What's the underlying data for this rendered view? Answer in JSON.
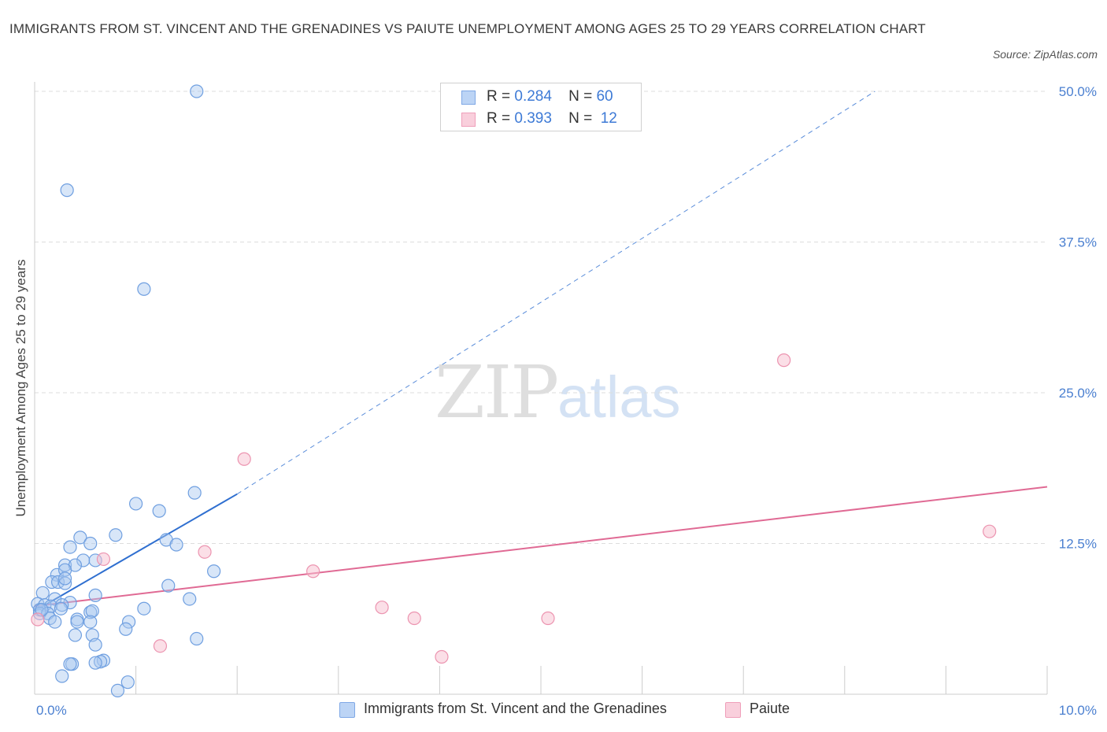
{
  "header": {
    "title": "IMMIGRANTS FROM ST. VINCENT AND THE GRENADINES VS PAIUTE UNEMPLOYMENT AMONG AGES 25 TO 29 YEARS CORRELATION CHART",
    "source": "Source: ZipAtlas.com"
  },
  "watermark": {
    "zip": "ZIP",
    "atlas": "atlas"
  },
  "legend_top": {
    "series1": {
      "r_label": "R =",
      "r_value": "0.284",
      "n_label": "N =",
      "n_value": "60"
    },
    "series2": {
      "r_label": "R =",
      "r_value": "0.393",
      "n_label": "N =",
      "n_value": "12"
    }
  },
  "legend_bottom": {
    "series1": "Immigrants from St. Vincent and the Grenadines",
    "series2": "Paiute"
  },
  "colors": {
    "blue_fill": "#a9c8f0",
    "blue_stroke": "#6f9fe0",
    "blue_line": "#2f6fd0",
    "pink_fill": "#f7bfd0",
    "pink_stroke": "#ec94b0",
    "pink_line": "#e06a94",
    "grid": "#dddddd",
    "axis_text": "#4a7fd0"
  },
  "chart_data": {
    "type": "scatter",
    "title": "IMMIGRANTS FROM ST. VINCENT AND THE GRENADINES VS PAIUTE UNEMPLOYMENT AMONG AGES 25 TO 29 YEARS CORRELATION CHART",
    "xlabel": "",
    "ylabel": "Unemployment Among Ages 25 to 29 years",
    "xlim": [
      0,
      10
    ],
    "ylim": [
      0,
      50
    ],
    "x_tick_labels": [
      "0.0%",
      "10.0%"
    ],
    "y_ticks": [
      12.5,
      25.0,
      37.5,
      50.0
    ],
    "y_tick_labels": [
      "12.5%",
      "25.0%",
      "37.5%",
      "50.0%"
    ],
    "grid": true,
    "series": [
      {
        "name": "Immigrants from St. Vincent and the Grenadines",
        "color": "#6f9fe0",
        "R": 0.284,
        "N": 60,
        "trend": {
          "x": [
            0.0,
            2.0
          ],
          "y": [
            6.9,
            16.6
          ],
          "extended_to": [
            8.3,
            50.0
          ]
        },
        "points": [
          [
            1.6,
            50.0
          ],
          [
            0.32,
            41.8
          ],
          [
            1.08,
            33.6
          ],
          [
            1.58,
            16.7
          ],
          [
            1.0,
            15.8
          ],
          [
            1.23,
            15.2
          ],
          [
            0.8,
            13.2
          ],
          [
            0.45,
            13.0
          ],
          [
            1.3,
            12.8
          ],
          [
            0.55,
            12.5
          ],
          [
            0.35,
            12.2
          ],
          [
            1.4,
            12.4
          ],
          [
            0.48,
            11.1
          ],
          [
            0.6,
            11.1
          ],
          [
            0.3,
            10.7
          ],
          [
            0.4,
            10.7
          ],
          [
            1.77,
            10.2
          ],
          [
            0.22,
            9.9
          ],
          [
            0.3,
            10.3
          ],
          [
            0.17,
            9.3
          ],
          [
            0.23,
            9.3
          ],
          [
            0.3,
            9.2
          ],
          [
            0.3,
            9.6
          ],
          [
            1.32,
            9.0
          ],
          [
            0.08,
            8.4
          ],
          [
            0.6,
            8.2
          ],
          [
            1.53,
            7.9
          ],
          [
            0.2,
            7.9
          ],
          [
            0.35,
            7.6
          ],
          [
            0.03,
            7.5
          ],
          [
            0.1,
            7.4
          ],
          [
            0.16,
            7.3
          ],
          [
            0.27,
            7.4
          ],
          [
            0.26,
            7.1
          ],
          [
            0.05,
            7.0
          ],
          [
            1.08,
            7.1
          ],
          [
            0.55,
            6.8
          ],
          [
            0.57,
            6.9
          ],
          [
            0.05,
            6.7
          ],
          [
            0.13,
            6.7
          ],
          [
            0.42,
            6.2
          ],
          [
            0.15,
            6.3
          ],
          [
            0.2,
            6.0
          ],
          [
            0.42,
            6.0
          ],
          [
            0.55,
            6.0
          ],
          [
            0.93,
            6.0
          ],
          [
            0.9,
            5.4
          ],
          [
            0.57,
            4.9
          ],
          [
            0.4,
            4.9
          ],
          [
            1.6,
            4.6
          ],
          [
            0.6,
            4.1
          ],
          [
            0.68,
            2.8
          ],
          [
            0.65,
            2.7
          ],
          [
            0.6,
            2.6
          ],
          [
            0.37,
            2.5
          ],
          [
            0.35,
            2.5
          ],
          [
            0.27,
            1.5
          ],
          [
            0.92,
            1.0
          ],
          [
            0.82,
            0.3
          ],
          [
            0.07,
            7.0
          ]
        ]
      },
      {
        "name": "Paiute",
        "color": "#ec94b0",
        "R": 0.393,
        "N": 12,
        "trend": {
          "x": [
            0.0,
            10.0
          ],
          "y": [
            7.3,
            17.2
          ]
        },
        "points": [
          [
            7.4,
            27.7
          ],
          [
            2.07,
            19.5
          ],
          [
            9.43,
            13.5
          ],
          [
            1.68,
            11.8
          ],
          [
            0.68,
            11.2
          ],
          [
            2.75,
            10.2
          ],
          [
            3.43,
            7.2
          ],
          [
            3.75,
            6.3
          ],
          [
            5.07,
            6.3
          ],
          [
            1.24,
            4.0
          ],
          [
            4.02,
            3.1
          ],
          [
            0.03,
            6.2
          ]
        ]
      }
    ]
  }
}
